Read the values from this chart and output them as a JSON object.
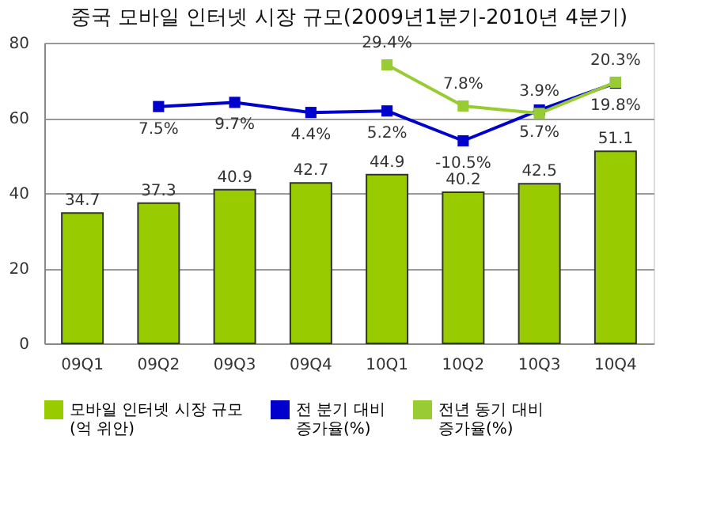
{
  "chart_data": {
    "type": "bar",
    "title": "중국 모바일 인터넷 시장 규모(2009년1분기-2010년 4분기)",
    "categories": [
      "09Q1",
      "09Q2",
      "09Q3",
      "09Q4",
      "10Q1",
      "10Q2",
      "10Q3",
      "10Q4"
    ],
    "series": [
      {
        "name": "모바일 인터넷 시장 규모\n(억 위안)",
        "color": "#99cc00",
        "values": [
          34.7,
          37.3,
          40.9,
          42.7,
          44.9,
          40.2,
          42.5,
          51.1
        ]
      },
      {
        "name": "전 분기 대비\n증가율(%)",
        "type": "line",
        "axis": "y2",
        "color": "#0000cc",
        "marker": "square",
        "values": [
          null,
          7.5,
          9.7,
          4.4,
          5.2,
          -10.5,
          5.7,
          19.8
        ],
        "value_labels": [
          null,
          "7.5%",
          "9.7%",
          "4.4%",
          "5.2%",
          "-10.5%",
          "5.7%",
          "19.8%"
        ]
      },
      {
        "name": "전년 동기 대비\n증가율(%)",
        "type": "line",
        "axis": "y2",
        "color": "#99cc33",
        "marker": "square",
        "values": [
          null,
          null,
          null,
          null,
          29.4,
          7.8,
          3.9,
          20.3
        ],
        "value_labels": [
          null,
          null,
          null,
          null,
          "29.4%",
          "7.8%",
          "3.9%",
          "20.3%"
        ]
      }
    ],
    "data_labels": true,
    "ylim": [
      0,
      80
    ],
    "yticks": [
      0,
      20,
      40,
      60,
      80
    ],
    "grid": "y",
    "legend": "bottom"
  }
}
